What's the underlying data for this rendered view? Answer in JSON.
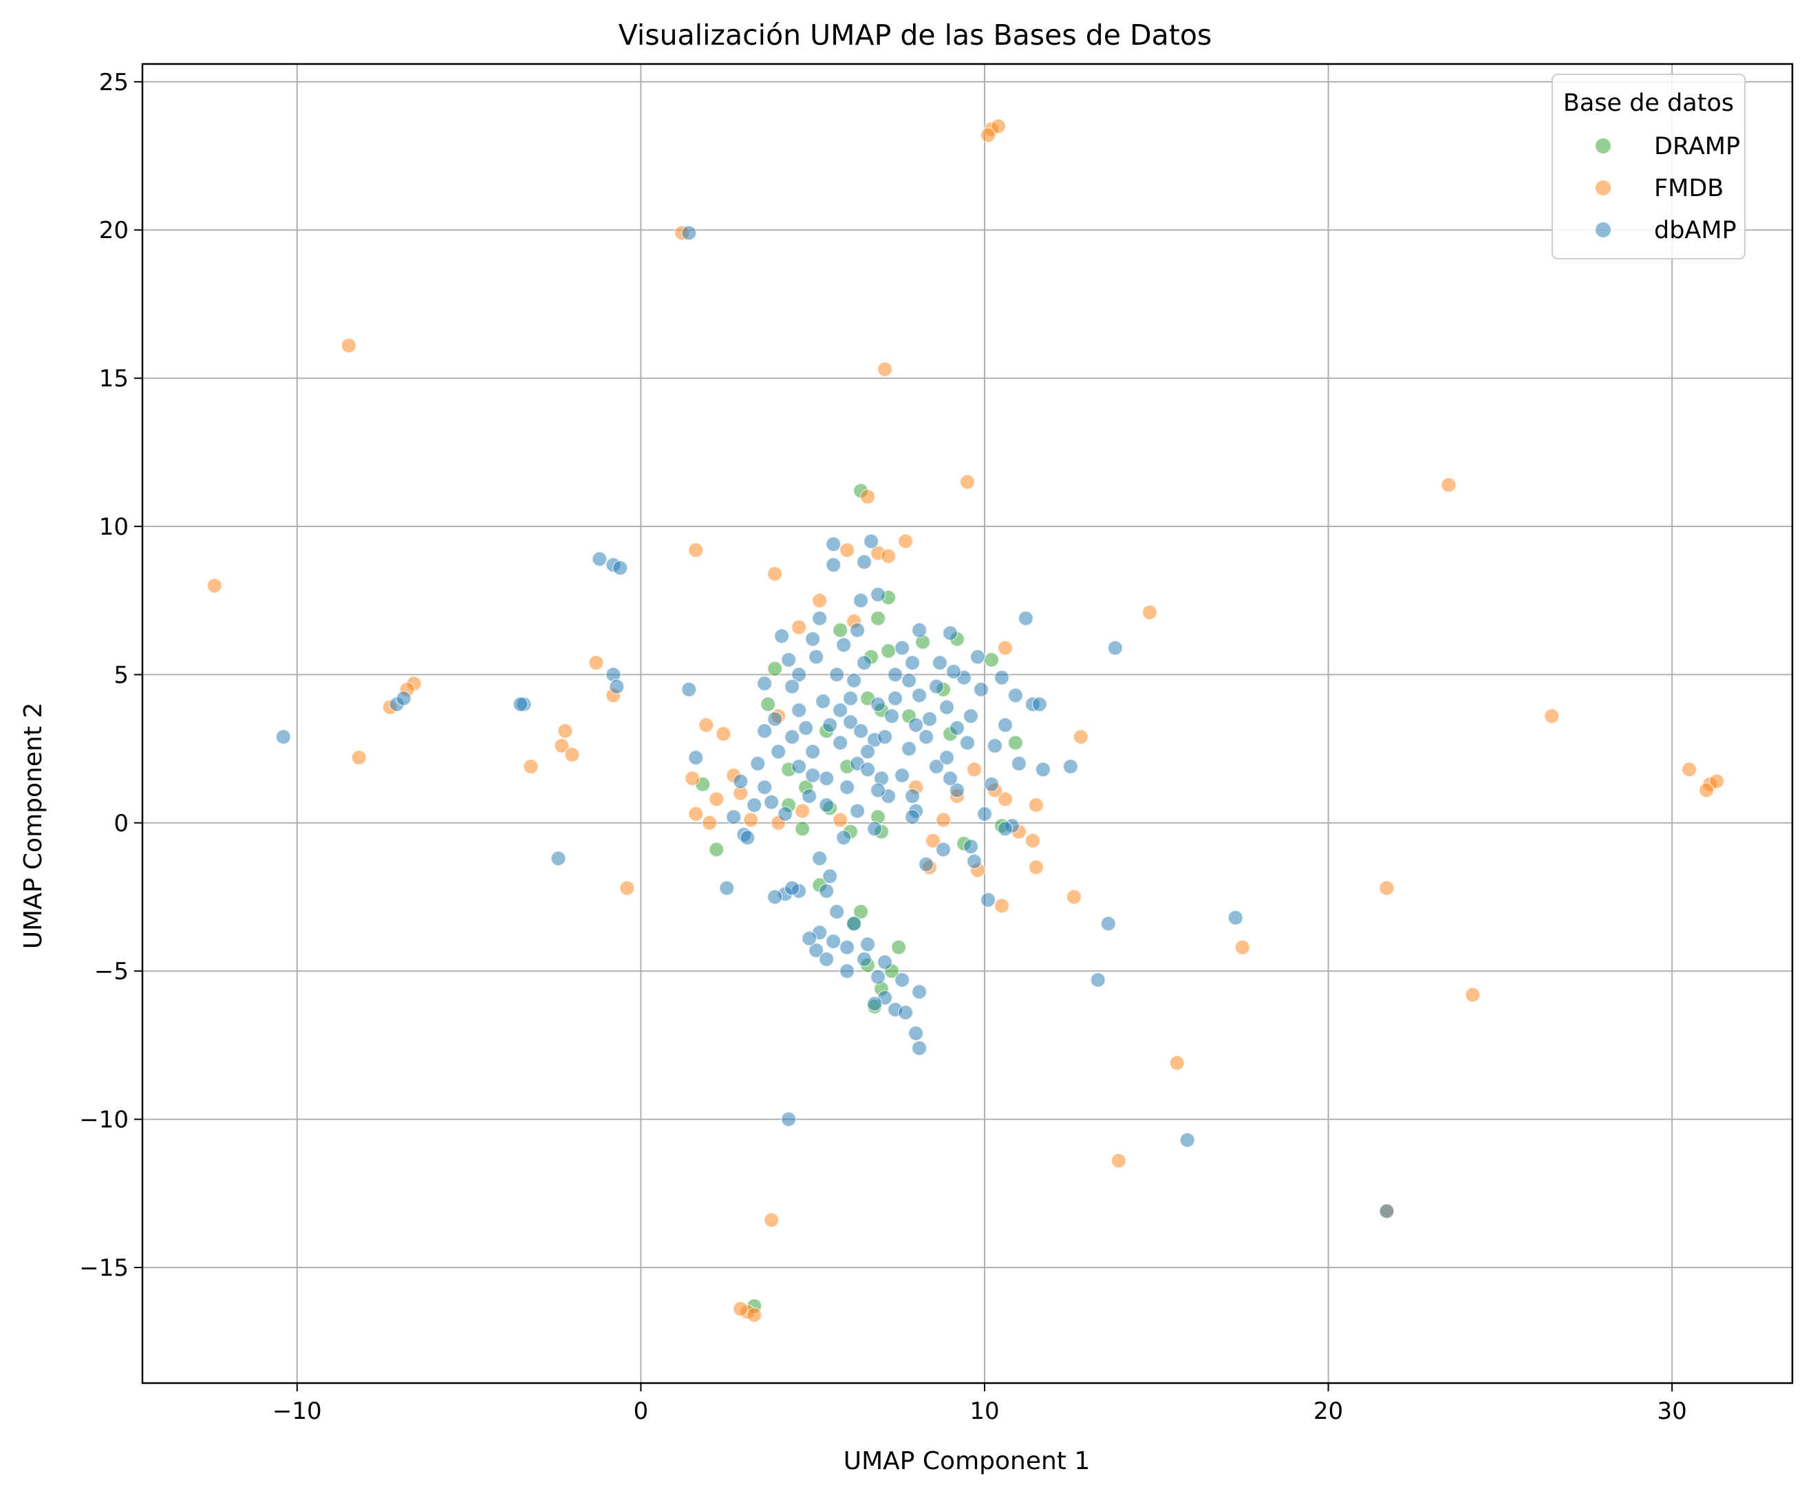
{
  "chart_data": {
    "type": "scatter",
    "title": "Visualización UMAP de las Bases de Datos",
    "xlabel": "UMAP Component 1",
    "ylabel": "UMAP Component 2",
    "xlim": [
      -14.5,
      33.5
    ],
    "ylim": [
      -18.9,
      25.6
    ],
    "xticks": [
      -10,
      0,
      10,
      20,
      30
    ],
    "yticks": [
      -15,
      -10,
      -5,
      0,
      5,
      10,
      15,
      20,
      25
    ],
    "tick_labels_x": [
      "−10",
      "0",
      "10",
      "20",
      "30"
    ],
    "tick_labels_y": [
      "−15",
      "−10",
      "−5",
      "0",
      "5",
      "10",
      "15",
      "20",
      "25"
    ],
    "grid": true,
    "legend": {
      "title": "Base de datos",
      "placement": "top-right"
    },
    "series": [
      {
        "name": "DRAMP",
        "color": "#2ca02c",
        "points": [
          [
            6.4,
            11.2
          ],
          [
            6.6,
            4.2
          ],
          [
            5.4,
            3.1
          ],
          [
            7.2,
            5.8
          ],
          [
            4.8,
            1.2
          ],
          [
            3.9,
            5.2
          ],
          [
            2.2,
            -0.9
          ],
          [
            4.7,
            -0.2
          ],
          [
            6.1,
            -0.3
          ],
          [
            7.0,
            -0.3
          ],
          [
            5.2,
            -2.1
          ],
          [
            6.2,
            -3.4
          ],
          [
            7.3,
            -5.0
          ],
          [
            6.8,
            -6.2
          ],
          [
            7.5,
            -4.2
          ],
          [
            6.4,
            -3.0
          ],
          [
            3.3,
            -16.3
          ],
          [
            9.0,
            3.0
          ],
          [
            9.4,
            -0.7
          ],
          [
            10.2,
            5.5
          ],
          [
            8.2,
            6.1
          ],
          [
            5.8,
            6.5
          ],
          [
            4.3,
            0.6
          ],
          [
            1.8,
            1.3
          ],
          [
            6.9,
            0.2
          ],
          [
            8.8,
            4.5
          ],
          [
            10.9,
            2.7
          ],
          [
            4.3,
            1.8
          ],
          [
            9.2,
            6.2
          ],
          [
            6.7,
            5.6
          ],
          [
            7.8,
            3.6
          ],
          [
            6.0,
            1.9
          ],
          [
            10.5,
            -0.1
          ],
          [
            5.5,
            0.5
          ],
          [
            6.6,
            -4.8
          ],
          [
            7.0,
            -5.6
          ],
          [
            3.7,
            4.0
          ],
          [
            7.2,
            7.6
          ],
          [
            6.9,
            6.9
          ],
          [
            7.0,
            3.8
          ]
        ]
      },
      {
        "name": "FMDB",
        "color": "#ff7f0e",
        "points": [
          [
            10.2,
            23.4
          ],
          [
            10.4,
            23.5
          ],
          [
            10.1,
            23.2
          ],
          [
            1.2,
            19.9
          ],
          [
            -8.5,
            16.1
          ],
          [
            7.1,
            15.3
          ],
          [
            9.5,
            11.5
          ],
          [
            23.5,
            11.4
          ],
          [
            6.6,
            11.0
          ],
          [
            7.7,
            9.5
          ],
          [
            1.6,
            9.2
          ],
          [
            6.9,
            9.1
          ],
          [
            3.9,
            8.4
          ],
          [
            -12.4,
            8.0
          ],
          [
            14.8,
            7.1
          ],
          [
            6.2,
            6.8
          ],
          [
            4.6,
            6.6
          ],
          [
            10.6,
            5.9
          ],
          [
            -1.3,
            5.4
          ],
          [
            -6.6,
            4.7
          ],
          [
            -6.8,
            4.5
          ],
          [
            -0.8,
            4.3
          ],
          [
            -7.3,
            3.9
          ],
          [
            26.5,
            3.6
          ],
          [
            1.9,
            3.3
          ],
          [
            2.4,
            3.0
          ],
          [
            -2.2,
            3.1
          ],
          [
            12.8,
            2.9
          ],
          [
            -2.3,
            2.6
          ],
          [
            -2.0,
            2.3
          ],
          [
            -8.2,
            2.2
          ],
          [
            -3.2,
            1.9
          ],
          [
            30.5,
            1.8
          ],
          [
            31.1,
            1.3
          ],
          [
            31.3,
            1.4
          ],
          [
            31.0,
            1.1
          ],
          [
            2.7,
            1.6
          ],
          [
            1.5,
            1.5
          ],
          [
            2.2,
            0.8
          ],
          [
            1.6,
            0.3
          ],
          [
            2.0,
            0.0
          ],
          [
            3.2,
            0.1
          ],
          [
            4.0,
            0.0
          ],
          [
            4.7,
            0.4
          ],
          [
            8.0,
            1.2
          ],
          [
            9.2,
            0.9
          ],
          [
            10.6,
            0.8
          ],
          [
            11.5,
            0.6
          ],
          [
            11.0,
            -0.3
          ],
          [
            11.4,
            -0.6
          ],
          [
            8.4,
            -1.5
          ],
          [
            9.8,
            -1.6
          ],
          [
            11.5,
            -1.5
          ],
          [
            10.5,
            -2.8
          ],
          [
            12.6,
            -2.5
          ],
          [
            21.7,
            -2.2
          ],
          [
            -0.4,
            -2.2
          ],
          [
            17.5,
            -4.2
          ],
          [
            24.2,
            -5.8
          ],
          [
            15.6,
            -8.1
          ],
          [
            13.9,
            -11.4
          ],
          [
            3.8,
            -13.4
          ],
          [
            3.1,
            -16.5
          ],
          [
            3.3,
            -16.6
          ],
          [
            2.9,
            -16.4
          ],
          [
            21.7,
            -13.1
          ],
          [
            6.0,
            9.2
          ],
          [
            2.9,
            1.0
          ],
          [
            9.7,
            1.8
          ],
          [
            8.8,
            0.1
          ],
          [
            4.0,
            3.6
          ],
          [
            7.2,
            9.0
          ],
          [
            10.3,
            1.1
          ],
          [
            5.2,
            7.5
          ],
          [
            8.5,
            -0.6
          ],
          [
            5.8,
            0.1
          ]
        ]
      },
      {
        "name": "dbAMP",
        "color": "#1f77b4",
        "points": [
          [
            1.4,
            19.9
          ],
          [
            -1.2,
            8.9
          ],
          [
            -0.8,
            8.7
          ],
          [
            -0.6,
            8.6
          ],
          [
            -7.1,
            4.0
          ],
          [
            -3.4,
            4.0
          ],
          [
            -10.4,
            2.9
          ],
          [
            -0.8,
            5.0
          ],
          [
            -0.7,
            4.6
          ],
          [
            1.4,
            4.5
          ],
          [
            -2.4,
            -1.2
          ],
          [
            1.6,
            2.2
          ],
          [
            2.5,
            -2.2
          ],
          [
            4.3,
            -10.0
          ],
          [
            13.8,
            5.9
          ],
          [
            13.3,
            -5.3
          ],
          [
            13.6,
            -3.4
          ],
          [
            17.3,
            -3.2
          ],
          [
            15.9,
            -10.7
          ],
          [
            21.7,
            -13.1
          ],
          [
            11.2,
            6.9
          ],
          [
            11.7,
            1.8
          ],
          [
            12.5,
            1.9
          ],
          [
            8.1,
            -5.7
          ],
          [
            8.1,
            -7.6
          ],
          [
            8.0,
            -7.1
          ],
          [
            7.4,
            -6.3
          ],
          [
            7.1,
            -5.9
          ],
          [
            6.9,
            -5.2
          ],
          [
            6.5,
            -4.6
          ],
          [
            6.0,
            -4.2
          ],
          [
            5.2,
            -3.7
          ],
          [
            5.1,
            -4.3
          ],
          [
            5.6,
            -4.0
          ],
          [
            4.2,
            -2.4
          ],
          [
            4.6,
            -2.3
          ],
          [
            3.9,
            -2.5
          ],
          [
            5.2,
            -1.2
          ],
          [
            5.5,
            -1.8
          ],
          [
            5.4,
            -2.3
          ],
          [
            6.7,
            9.5
          ],
          [
            5.6,
            9.4
          ],
          [
            6.5,
            8.8
          ],
          [
            5.6,
            8.7
          ],
          [
            6.9,
            7.7
          ],
          [
            6.4,
            7.5
          ],
          [
            4.1,
            6.3
          ],
          [
            5.0,
            6.2
          ],
          [
            4.6,
            5.0
          ],
          [
            6.1,
            4.2
          ],
          [
            5.5,
            3.3
          ],
          [
            6.8,
            2.8
          ],
          [
            7.3,
            3.6
          ],
          [
            8.1,
            4.3
          ],
          [
            8.9,
            3.9
          ],
          [
            9.5,
            2.7
          ],
          [
            8.6,
            1.9
          ],
          [
            7.8,
            2.5
          ],
          [
            6.0,
            1.2
          ],
          [
            5.4,
            0.6
          ],
          [
            4.6,
            1.9
          ],
          [
            3.3,
            0.6
          ],
          [
            2.7,
            0.2
          ],
          [
            3.0,
            -0.4
          ],
          [
            3.8,
            0.7
          ],
          [
            4.9,
            0.9
          ],
          [
            6.3,
            0.4
          ],
          [
            7.2,
            0.9
          ],
          [
            8.0,
            0.4
          ],
          [
            9.2,
            1.1
          ],
          [
            10.0,
            0.3
          ],
          [
            10.8,
            -0.1
          ],
          [
            11.0,
            2.0
          ],
          [
            11.4,
            4.0
          ],
          [
            10.5,
            4.9
          ],
          [
            9.8,
            5.6
          ],
          [
            9.0,
            6.4
          ],
          [
            8.1,
            6.5
          ],
          [
            7.6,
            5.9
          ],
          [
            6.5,
            5.4
          ],
          [
            5.9,
            6.0
          ],
          [
            5.1,
            5.6
          ],
          [
            4.4,
            4.6
          ],
          [
            3.9,
            3.5
          ],
          [
            4.4,
            2.9
          ],
          [
            5.0,
            2.4
          ],
          [
            6.3,
            2.0
          ],
          [
            7.0,
            1.5
          ],
          [
            8.3,
            2.9
          ],
          [
            9.6,
            3.6
          ],
          [
            10.3,
            2.6
          ],
          [
            10.9,
            4.3
          ],
          [
            11.6,
            4.0
          ],
          [
            10.6,
            3.3
          ],
          [
            9.9,
            4.5
          ],
          [
            8.7,
            5.4
          ],
          [
            7.8,
            4.8
          ],
          [
            6.9,
            4.0
          ],
          [
            6.1,
            3.4
          ],
          [
            5.3,
            4.1
          ],
          [
            4.8,
            3.2
          ],
          [
            5.8,
            2.7
          ],
          [
            6.6,
            1.8
          ],
          [
            7.6,
            1.6
          ],
          [
            8.9,
            2.2
          ],
          [
            9.4,
            4.9
          ],
          [
            8.4,
            3.5
          ],
          [
            7.1,
            2.9
          ],
          [
            6.4,
            3.1
          ],
          [
            5.7,
            5.0
          ],
          [
            4.3,
            5.5
          ],
          [
            3.6,
            4.7
          ],
          [
            2.9,
            1.4
          ],
          [
            3.6,
            1.2
          ],
          [
            4.2,
            0.3
          ],
          [
            5.9,
            -0.5
          ],
          [
            6.8,
            -0.2
          ],
          [
            7.9,
            0.2
          ],
          [
            9.6,
            -0.8
          ],
          [
            10.1,
            -2.6
          ],
          [
            8.3,
            -1.4
          ],
          [
            9.7,
            -1.3
          ],
          [
            10.6,
            -0.2
          ],
          [
            6.6,
            -4.1
          ],
          [
            7.1,
            -4.7
          ],
          [
            7.6,
            -5.3
          ],
          [
            6.2,
            -3.4
          ],
          [
            5.7,
            -3.0
          ],
          [
            4.9,
            -3.9
          ],
          [
            5.4,
            -4.6
          ],
          [
            6.0,
            -5.0
          ],
          [
            6.8,
            -6.1
          ],
          [
            7.7,
            -6.4
          ],
          [
            6.2,
            4.8
          ],
          [
            7.4,
            4.2
          ],
          [
            8.6,
            4.6
          ],
          [
            5.4,
            1.5
          ],
          [
            6.9,
            1.1
          ],
          [
            4.0,
            2.4
          ],
          [
            3.6,
            3.1
          ],
          [
            9.1,
            5.1
          ],
          [
            10.2,
            1.3
          ],
          [
            4.4,
            -2.2
          ],
          [
            8.8,
            -0.9
          ],
          [
            -3.5,
            4.0
          ],
          [
            -6.9,
            4.2
          ],
          [
            6.3,
            6.5
          ],
          [
            7.9,
            5.4
          ],
          [
            5.2,
            6.9
          ],
          [
            4.6,
            3.8
          ],
          [
            3.4,
            2.0
          ],
          [
            3.1,
            -0.5
          ],
          [
            7.4,
            5.0
          ],
          [
            5.8,
            3.8
          ],
          [
            8.0,
            3.3
          ],
          [
            9.2,
            3.2
          ],
          [
            6.6,
            2.4
          ],
          [
            5.0,
            1.6
          ],
          [
            7.9,
            0.9
          ],
          [
            9.0,
            1.5
          ]
        ]
      }
    ]
  }
}
